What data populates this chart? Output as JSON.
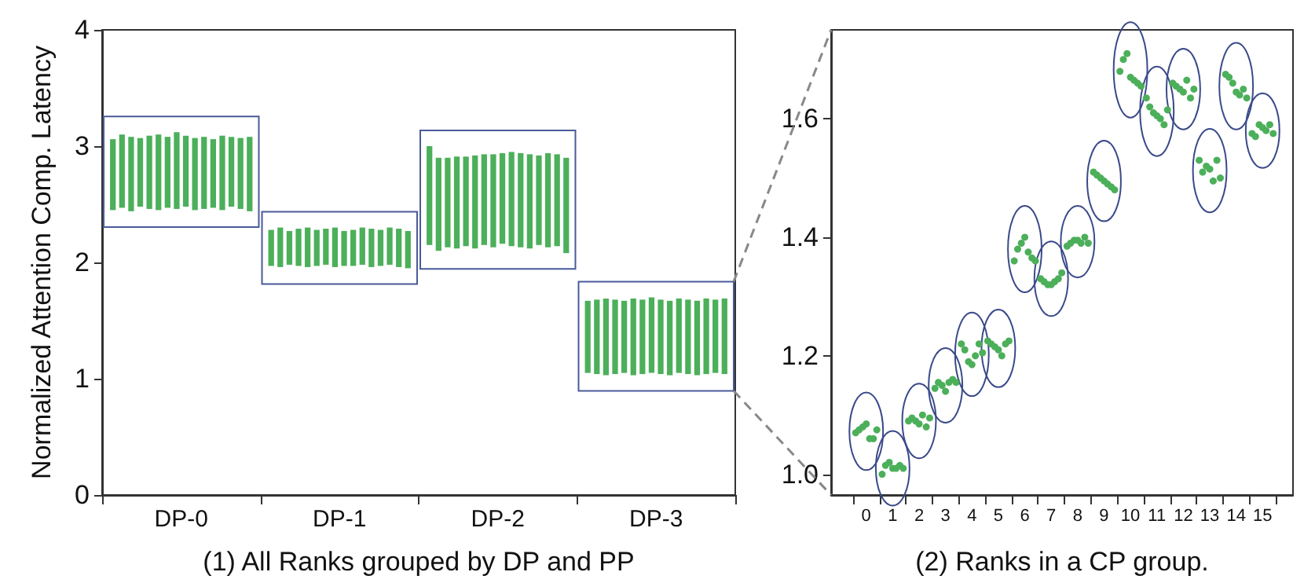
{
  "chart_data": [
    {
      "type": "bar",
      "categories": [
        "DP-0",
        "DP-1",
        "DP-2",
        "DP-3"
      ],
      "ylabel": "Normalized Attention Comp. Latency",
      "xlabel": "(1) All Ranks grouped by DP and PP",
      "ylim": [
        0,
        4
      ],
      "yticks": [
        0,
        1,
        2,
        3,
        4
      ],
      "series": [
        {
          "color": "#4caf5a",
          "base": [
            2.45,
            1.97,
            2.15,
            1.05
          ],
          "values": [
            0.61,
            0.31,
            0.85,
            0.62
          ]
        },
        {
          "color": "#4caf5a",
          "base": [
            2.47,
            1.96,
            2.1,
            1.04
          ],
          "values": [
            0.63,
            0.34,
            0.8,
            0.64
          ]
        },
        {
          "color": "#4caf5a",
          "base": [
            2.44,
            1.98,
            2.13,
            1.03
          ],
          "values": [
            0.64,
            0.29,
            0.77,
            0.66
          ]
        },
        {
          "color": "#4caf5a",
          "base": [
            2.48,
            1.97,
            2.12,
            1.04
          ],
          "values": [
            0.59,
            0.32,
            0.79,
            0.64
          ]
        },
        {
          "color": "#4caf5a",
          "base": [
            2.46,
            1.96,
            2.14,
            1.05
          ],
          "values": [
            0.63,
            0.34,
            0.77,
            0.62
          ]
        },
        {
          "color": "#4caf5a",
          "base": [
            2.45,
            1.97,
            2.12,
            1.03
          ],
          "values": [
            0.65,
            0.31,
            0.8,
            0.66
          ]
        },
        {
          "color": "#4caf5a",
          "base": [
            2.47,
            1.98,
            2.15,
            1.04
          ],
          "values": [
            0.61,
            0.31,
            0.78,
            0.64
          ]
        },
        {
          "color": "#4caf5a",
          "base": [
            2.46,
            1.96,
            2.13,
            1.05
          ],
          "values": [
            0.66,
            0.34,
            0.8,
            0.65
          ]
        },
        {
          "color": "#4caf5a",
          "base": [
            2.48,
            1.97,
            2.16,
            1.04
          ],
          "values": [
            0.61,
            0.3,
            0.78,
            0.64
          ]
        },
        {
          "color": "#4caf5a",
          "base": [
            2.45,
            1.97,
            2.14,
            1.03
          ],
          "values": [
            0.62,
            0.31,
            0.81,
            0.64
          ]
        },
        {
          "color": "#4caf5a",
          "base": [
            2.46,
            1.98,
            2.13,
            1.05
          ],
          "values": [
            0.62,
            0.32,
            0.81,
            0.64
          ]
        },
        {
          "color": "#4caf5a",
          "base": [
            2.47,
            1.96,
            2.12,
            1.04
          ],
          "values": [
            0.59,
            0.33,
            0.81,
            0.64
          ]
        },
        {
          "color": "#4caf5a",
          "base": [
            2.45,
            1.97,
            2.15,
            1.03
          ],
          "values": [
            0.64,
            0.31,
            0.77,
            0.64
          ]
        },
        {
          "color": "#4caf5a",
          "base": [
            2.48,
            1.98,
            2.13,
            1.04
          ],
          "values": [
            0.6,
            0.32,
            0.81,
            0.65
          ]
        },
        {
          "color": "#4caf5a",
          "base": [
            2.46,
            1.96,
            2.14,
            1.05
          ],
          "values": [
            0.61,
            0.33,
            0.79,
            0.63
          ]
        },
        {
          "color": "#4caf5a",
          "base": [
            2.44,
            1.95,
            2.08,
            1.04
          ],
          "values": [
            0.64,
            0.32,
            0.82,
            0.65
          ]
        }
      ]
    },
    {
      "type": "scatter",
      "xlim": [
        -1.33,
        16.15
      ],
      "xticks": [
        {
          "value": -0.5,
          "label": null
        },
        0,
        {
          "value": 0.5,
          "label": null
        },
        1,
        {
          "value": 1.5,
          "label": null
        },
        2,
        {
          "value": 2.5,
          "label": null
        },
        3,
        {
          "value": 3.5,
          "label": null
        },
        4,
        {
          "value": 4.5,
          "label": null
        },
        5,
        {
          "value": 5.5,
          "label": null
        },
        6,
        {
          "value": 6.5,
          "label": null
        },
        7,
        {
          "value": 7.5,
          "label": null
        },
        8,
        {
          "value": 8.5,
          "label": null
        },
        9,
        {
          "value": 9.5,
          "label": null
        },
        10,
        {
          "value": 10.5,
          "label": null
        },
        11,
        {
          "value": 11.5,
          "label": null
        },
        12,
        {
          "value": 12.5,
          "label": null
        },
        13,
        {
          "value": 13.5,
          "label": null
        },
        14,
        {
          "value": 14.5,
          "label": null
        },
        15,
        {
          "value": 15.5,
          "label": null
        }
      ],
      "xlabel": "(2) Ranks in a CP group.",
      "ylim": [
        0.965,
        1.75
      ],
      "yticks": [
        {
          "value": 1,
          "label": "1.0"
        },
        {
          "value": 1.2,
          "label": "1.2"
        },
        {
          "value": 1.4,
          "label": "1.4"
        },
        {
          "value": 1.6,
          "label": "1.6"
        }
      ],
      "marker": "circle",
      "series": [
        {
          "color": "#4caf5a",
          "x": [
            -0.4,
            -0.27,
            -0.13,
            0,
            0.13,
            0.27,
            0.4
          ],
          "values": [
            1.07,
            1.075,
            1.08,
            1.085,
            1.06,
            1.06,
            1.075
          ]
        },
        {
          "color": "#4caf5a",
          "x": [
            0.6,
            0.73,
            0.87,
            1,
            1.13,
            1.27,
            1.4
          ],
          "values": [
            1.0,
            1.015,
            1.02,
            1.01,
            1.01,
            1.015,
            1.01
          ]
        },
        {
          "color": "#4caf5a",
          "x": [
            1.6,
            1.73,
            1.87,
            2,
            2.13,
            2.27,
            2.4
          ],
          "values": [
            1.09,
            1.095,
            1.09,
            1.085,
            1.1,
            1.08,
            1.095
          ]
        },
        {
          "color": "#4caf5a",
          "x": [
            2.6,
            2.73,
            2.87,
            3,
            3.13,
            3.27,
            3.4
          ],
          "values": [
            1.145,
            1.155,
            1.15,
            1.14,
            1.155,
            1.16,
            1.155
          ]
        },
        {
          "color": "#4caf5a",
          "x": [
            3.6,
            3.73,
            3.87,
            4,
            4.13,
            4.27,
            4.4
          ],
          "values": [
            1.22,
            1.21,
            1.19,
            1.185,
            1.2,
            1.22,
            1.205
          ]
        },
        {
          "color": "#4caf5a",
          "x": [
            4.6,
            4.73,
            4.87,
            5,
            5.13,
            5.27,
            5.4
          ],
          "values": [
            1.225,
            1.22,
            1.215,
            1.21,
            1.2,
            1.22,
            1.225
          ]
        },
        {
          "color": "#4caf5a",
          "x": [
            5.6,
            5.73,
            5.87,
            6,
            6.13,
            6.27,
            6.4
          ],
          "values": [
            1.36,
            1.38,
            1.39,
            1.4,
            1.375,
            1.365,
            1.36
          ]
        },
        {
          "color": "#4caf5a",
          "x": [
            6.6,
            6.73,
            6.87,
            7,
            7.13,
            7.27,
            7.4
          ],
          "values": [
            1.33,
            1.325,
            1.32,
            1.32,
            1.325,
            1.33,
            1.34
          ]
        },
        {
          "color": "#4caf5a",
          "x": [
            7.6,
            7.73,
            7.87,
            8,
            8.13,
            8.27,
            8.4
          ],
          "values": [
            1.385,
            1.39,
            1.395,
            1.395,
            1.39,
            1.4,
            1.39
          ]
        },
        {
          "color": "#4caf5a",
          "x": [
            8.6,
            8.73,
            8.87,
            9,
            9.13,
            9.27,
            9.4
          ],
          "values": [
            1.51,
            1.505,
            1.5,
            1.495,
            1.49,
            1.485,
            1.48
          ]
        },
        {
          "color": "#4caf5a",
          "x": [
            9.6,
            9.73,
            9.87,
            10,
            10.13,
            10.27,
            10.4
          ],
          "values": [
            1.68,
            1.7,
            1.71,
            1.67,
            1.665,
            1.66,
            1.655
          ]
        },
        {
          "color": "#4caf5a",
          "x": [
            10.6,
            10.73,
            10.87,
            11,
            11.13,
            11.27,
            11.4
          ],
          "values": [
            1.635,
            1.62,
            1.61,
            1.605,
            1.6,
            1.59,
            1.615
          ]
        },
        {
          "color": "#4caf5a",
          "x": [
            11.6,
            11.73,
            11.87,
            12,
            12.13,
            12.27,
            12.4
          ],
          "values": [
            1.66,
            1.655,
            1.65,
            1.645,
            1.665,
            1.635,
            1.65
          ]
        },
        {
          "color": "#4caf5a",
          "x": [
            12.6,
            12.73,
            12.87,
            13,
            13.13,
            13.27,
            13.4
          ],
          "values": [
            1.53,
            1.51,
            1.52,
            1.515,
            1.495,
            1.53,
            1.5
          ]
        },
        {
          "color": "#4caf5a",
          "x": [
            13.6,
            13.73,
            13.87,
            14,
            14.13,
            14.27,
            14.4
          ],
          "values": [
            1.675,
            1.67,
            1.66,
            1.645,
            1.64,
            1.65,
            1.635
          ]
        },
        {
          "color": "#4caf5a",
          "x": [
            14.6,
            14.73,
            14.87,
            15,
            15.13,
            15.27,
            15.4
          ],
          "values": [
            1.575,
            1.57,
            1.59,
            1.585,
            1.58,
            1.59,
            1.575
          ]
        }
      ]
    }
  ]
}
